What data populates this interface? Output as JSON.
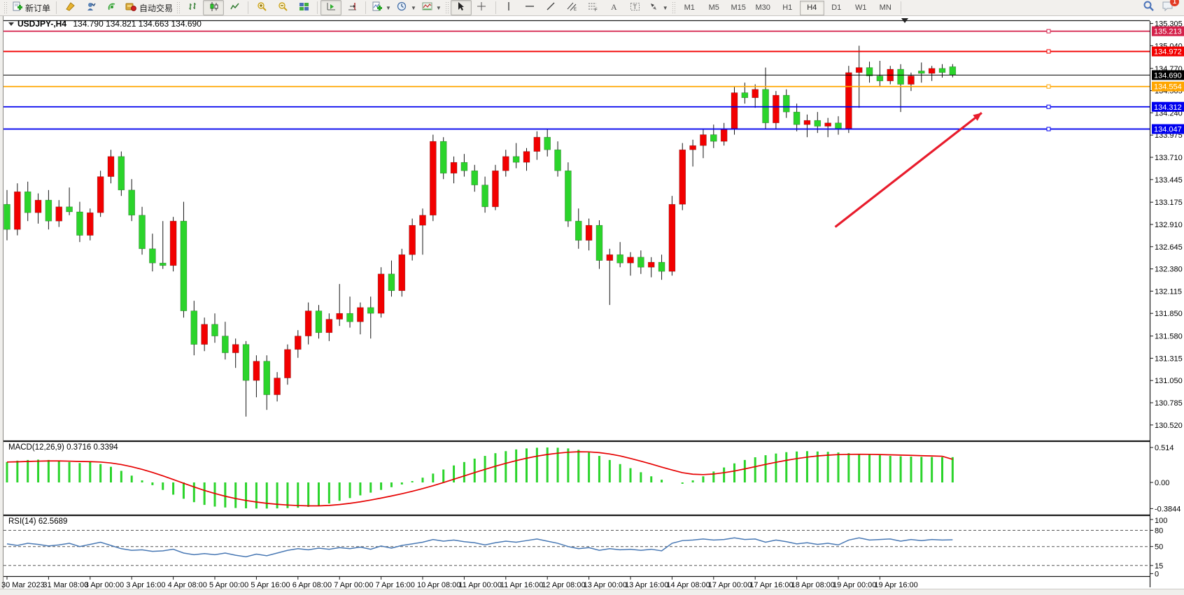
{
  "toolbar": {
    "new_order_label": "新订单",
    "autotrading_label": "自动交易",
    "timeframes": [
      "M1",
      "M5",
      "M15",
      "M30",
      "H1",
      "H4",
      "D1",
      "W1",
      "MN"
    ],
    "active_timeframe": "H4",
    "badge_count": "1"
  },
  "chart_header": {
    "title": "USDJPY-,H4",
    "ohlc": "134.790 134.821 134.663 134.690"
  },
  "colors": {
    "bull": "#f20000",
    "bear": "#2bd42b",
    "wick": "#141414",
    "hline_crimson": "#d4214a",
    "hline_red": "#f20000",
    "hline_orange": "#ffa600",
    "hline_blue": "#0000ee",
    "current_price": "#000000",
    "macd_hist": "#2bd42b",
    "macd_signal": "#e60000",
    "rsi_line": "#4878b4",
    "arrow": "#e81c2c",
    "axis_text": "#000000",
    "level_dash": "#555555"
  },
  "chart_data": {
    "type": "candlestick",
    "symbol": "USDJPY-",
    "timeframe": "H4",
    "title": "USDJPY-,H4 134.790 134.821 134.663 134.690",
    "current_bar": {
      "open": "134.790",
      "high": "134.821",
      "low": "134.663",
      "close": "134.690"
    },
    "price_ticks": [
      135.305,
      135.04,
      134.77,
      134.505,
      134.24,
      133.975,
      133.71,
      133.445,
      133.175,
      132.91,
      132.645,
      132.38,
      132.115,
      131.85,
      131.58,
      131.315,
      131.05,
      130.785,
      130.52
    ],
    "time_labels": [
      "30 Mar 2023",
      "31 Mar 08:00",
      "3 Apr 00:00",
      "3 Apr 16:00",
      "4 Apr 08:00",
      "5 Apr 00:00",
      "5 Apr 16:00",
      "6 Apr 08:00",
      "7 Apr 00:00",
      "7 Apr 16:00",
      "10 Apr 08:00",
      "11 Apr 00:00",
      "11 Apr 16:00",
      "12 Apr 08:00",
      "13 Apr 00:00",
      "13 Apr 16:00",
      "14 Apr 08:00",
      "17 Apr 00:00",
      "17 Apr 16:00",
      "18 Apr 08:00",
      "19 Apr 00:00",
      "19 Apr 16:00"
    ],
    "bars_per_label": 4,
    "hlines": [
      {
        "price": 135.213,
        "label": "135.213",
        "color": "#d4214a"
      },
      {
        "price": 134.972,
        "label": "134.972",
        "color": "#f20000"
      },
      {
        "price": 134.554,
        "label": "134.554",
        "color": "#ffa600"
      },
      {
        "price": 134.312,
        "label": "134.312",
        "color": "#0000ee"
      },
      {
        "price": 134.047,
        "label": "134.047",
        "color": "#0000ee"
      }
    ],
    "current_price_line": {
      "price": 134.69,
      "label": "134.690"
    },
    "arrow": {
      "from_bar": 79.7,
      "from_price": 132.88,
      "to_bar": 93.8,
      "to_price": 134.24
    },
    "candles": [
      [
        133.15,
        133.32,
        132.72,
        132.85
      ],
      [
        132.85,
        133.4,
        132.78,
        133.3
      ],
      [
        133.3,
        133.42,
        132.95,
        133.05
      ],
      [
        133.05,
        133.28,
        132.92,
        133.2
      ],
      [
        133.2,
        133.32,
        132.85,
        132.95
      ],
      [
        132.95,
        133.2,
        132.88,
        133.12
      ],
      [
        133.12,
        133.35,
        133.02,
        133.06
      ],
      [
        133.06,
        133.18,
        132.7,
        132.78
      ],
      [
        132.78,
        133.1,
        132.72,
        133.05
      ],
      [
        133.05,
        133.55,
        133.0,
        133.48
      ],
      [
        133.48,
        133.8,
        133.4,
        133.72
      ],
      [
        133.72,
        133.78,
        133.25,
        133.32
      ],
      [
        133.32,
        133.45,
        132.95,
        133.02
      ],
      [
        133.02,
        133.12,
        132.55,
        132.62
      ],
      [
        132.62,
        132.8,
        132.35,
        132.45
      ],
      [
        132.45,
        132.95,
        132.38,
        132.42
      ],
      [
        132.42,
        133.0,
        132.35,
        132.95
      ],
      [
        132.95,
        133.18,
        131.8,
        131.88
      ],
      [
        131.88,
        132.0,
        131.35,
        131.48
      ],
      [
        131.48,
        131.8,
        131.4,
        131.72
      ],
      [
        131.72,
        131.85,
        131.5,
        131.58
      ],
      [
        131.58,
        131.75,
        131.3,
        131.38
      ],
      [
        131.38,
        131.55,
        131.2,
        131.48
      ],
      [
        131.48,
        131.52,
        130.62,
        131.05
      ],
      [
        131.05,
        131.35,
        130.85,
        131.28
      ],
      [
        131.28,
        131.35,
        130.7,
        130.88
      ],
      [
        130.88,
        131.15,
        130.8,
        131.08
      ],
      [
        131.08,
        131.48,
        131.0,
        131.42
      ],
      [
        131.42,
        131.65,
        131.32,
        131.58
      ],
      [
        131.58,
        131.98,
        131.48,
        131.88
      ],
      [
        131.88,
        131.95,
        131.55,
        131.62
      ],
      [
        131.62,
        131.85,
        131.52,
        131.78
      ],
      [
        131.78,
        132.2,
        131.7,
        131.85
      ],
      [
        131.85,
        132.05,
        131.68,
        131.75
      ],
      [
        131.75,
        131.98,
        131.6,
        131.92
      ],
      [
        131.92,
        132.05,
        131.55,
        131.85
      ],
      [
        131.85,
        132.4,
        131.8,
        132.32
      ],
      [
        132.32,
        132.48,
        132.05,
        132.12
      ],
      [
        132.12,
        132.62,
        132.05,
        132.55
      ],
      [
        132.55,
        132.98,
        132.48,
        132.9
      ],
      [
        132.9,
        133.1,
        132.55,
        133.02
      ],
      [
        133.02,
        133.98,
        132.95,
        133.9
      ],
      [
        133.9,
        133.95,
        133.45,
        133.52
      ],
      [
        133.52,
        133.72,
        133.4,
        133.65
      ],
      [
        133.65,
        133.75,
        133.48,
        133.55
      ],
      [
        133.55,
        133.62,
        133.3,
        133.38
      ],
      [
        133.38,
        133.48,
        133.05,
        133.12
      ],
      [
        133.12,
        133.62,
        133.08,
        133.55
      ],
      [
        133.55,
        133.8,
        133.48,
        133.72
      ],
      [
        133.72,
        133.88,
        133.58,
        133.65
      ],
      [
        133.65,
        133.82,
        133.55,
        133.78
      ],
      [
        133.78,
        134.02,
        133.68,
        133.95
      ],
      [
        133.95,
        134.04,
        133.72,
        133.8
      ],
      [
        133.8,
        133.9,
        133.48,
        133.55
      ],
      [
        133.55,
        133.65,
        132.88,
        132.95
      ],
      [
        132.95,
        133.1,
        132.62,
        132.72
      ],
      [
        132.72,
        132.98,
        132.6,
        132.9
      ],
      [
        132.9,
        132.96,
        132.38,
        132.48
      ],
      [
        132.48,
        132.62,
        131.95,
        132.55
      ],
      [
        132.55,
        132.7,
        132.4,
        132.45
      ],
      [
        132.45,
        132.58,
        132.3,
        132.52
      ],
      [
        132.52,
        132.6,
        132.32,
        132.4
      ],
      [
        132.4,
        132.52,
        132.28,
        132.46
      ],
      [
        132.46,
        132.55,
        132.25,
        132.35
      ],
      [
        132.35,
        133.25,
        132.3,
        133.15
      ],
      [
        133.15,
        133.88,
        133.08,
        133.8
      ],
      [
        133.8,
        133.92,
        133.6,
        133.85
      ],
      [
        133.85,
        134.05,
        133.7,
        133.98
      ],
      [
        133.98,
        134.1,
        133.82,
        133.9
      ],
      [
        133.9,
        134.12,
        133.85,
        134.05
      ],
      [
        134.05,
        134.55,
        133.98,
        134.48
      ],
      [
        134.48,
        134.6,
        134.35,
        134.42
      ],
      [
        134.42,
        134.58,
        134.3,
        134.52
      ],
      [
        134.52,
        134.78,
        134.05,
        134.12
      ],
      [
        134.12,
        134.5,
        134.05,
        134.45
      ],
      [
        134.45,
        134.52,
        134.18,
        134.25
      ],
      [
        134.25,
        134.35,
        134.02,
        134.1
      ],
      [
        134.1,
        134.22,
        133.95,
        134.15
      ],
      [
        134.15,
        134.25,
        134.0,
        134.08
      ],
      [
        134.08,
        134.18,
        133.95,
        134.12
      ],
      [
        134.12,
        134.2,
        133.98,
        134.05
      ],
      [
        134.05,
        134.8,
        134.0,
        134.72
      ],
      [
        134.72,
        135.04,
        134.3,
        134.78
      ],
      [
        134.78,
        134.85,
        134.6,
        134.68
      ],
      [
        134.68,
        134.86,
        134.55,
        134.62
      ],
      [
        134.62,
        134.8,
        134.58,
        134.76
      ],
      [
        134.76,
        134.82,
        134.25,
        134.58
      ],
      [
        134.58,
        134.72,
        134.5,
        134.68
      ],
      [
        134.74,
        134.84,
        134.6,
        134.71
      ],
      [
        134.71,
        134.8,
        134.62,
        134.77
      ],
      [
        134.77,
        134.82,
        134.66,
        134.72
      ],
      [
        134.79,
        134.821,
        134.663,
        134.69
      ]
    ],
    "macd": {
      "name_label": "MACD(12,26,9) 0.3716 0.3394",
      "ticks": [
        {
          "v": 0.514,
          "label": "0.514"
        },
        {
          "v": 0,
          "label": "0.00"
        },
        {
          "v": -0.3844,
          "label": "-0.3844"
        }
      ],
      "hist": [
        0.3,
        0.32,
        0.33,
        0.335,
        0.33,
        0.315,
        0.3,
        0.285,
        0.3,
        0.27,
        0.23,
        0.17,
        0.1,
        0.03,
        -0.04,
        -0.11,
        -0.18,
        -0.24,
        -0.29,
        -0.33,
        -0.355,
        -0.368,
        -0.376,
        -0.381,
        -0.384,
        -0.3844,
        -0.382,
        -0.378,
        -0.372,
        -0.36,
        -0.34,
        -0.31,
        -0.27,
        -0.23,
        -0.19,
        -0.15,
        -0.11,
        -0.07,
        -0.03,
        0.02,
        0.07,
        0.13,
        0.19,
        0.25,
        0.3,
        0.35,
        0.39,
        0.43,
        0.46,
        0.485,
        0.5,
        0.51,
        0.514,
        0.51,
        0.5,
        0.48,
        0.44,
        0.39,
        0.33,
        0.27,
        0.21,
        0.15,
        0.09,
        0.04,
        0.0,
        -0.02,
        0.03,
        0.09,
        0.16,
        0.22,
        0.28,
        0.33,
        0.37,
        0.4,
        0.425,
        0.445,
        0.455,
        0.46,
        0.455,
        0.45,
        0.44,
        0.43,
        0.42,
        0.41,
        0.4,
        0.39,
        0.385,
        0.38,
        0.376,
        0.374,
        0.372,
        0.3716
      ],
      "signal": [
        0.3,
        0.303,
        0.308,
        0.313,
        0.316,
        0.316,
        0.313,
        0.308,
        0.306,
        0.3,
        0.286,
        0.263,
        0.231,
        0.192,
        0.147,
        0.097,
        0.043,
        -0.012,
        -0.066,
        -0.117,
        -0.163,
        -0.203,
        -0.237,
        -0.265,
        -0.288,
        -0.307,
        -0.321,
        -0.332,
        -0.34,
        -0.344,
        -0.344,
        -0.338,
        -0.325,
        -0.307,
        -0.285,
        -0.259,
        -0.23,
        -0.199,
        -0.166,
        -0.13,
        -0.091,
        -0.048,
        -0.002,
        0.047,
        0.096,
        0.145,
        0.192,
        0.238,
        0.281,
        0.321,
        0.356,
        0.386,
        0.411,
        0.43,
        0.444,
        0.451,
        0.449,
        0.438,
        0.418,
        0.39,
        0.353,
        0.313,
        0.27,
        0.226,
        0.183,
        0.143,
        0.121,
        0.115,
        0.124,
        0.143,
        0.168,
        0.199,
        0.232,
        0.265,
        0.296,
        0.325,
        0.35,
        0.372,
        0.389,
        0.401,
        0.409,
        0.413,
        0.414,
        0.413,
        0.41,
        0.406,
        0.402,
        0.398,
        0.393,
        0.389,
        0.385,
        0.3394
      ]
    },
    "rsi": {
      "name_label": "RSI(14) 62.5689",
      "ticks": [
        {
          "v": 100,
          "label": "100"
        },
        {
          "v": 80,
          "label": "80"
        },
        {
          "v": 50,
          "label": "50"
        },
        {
          "v": 15,
          "label": "15"
        },
        {
          "v": 0,
          "label": "0"
        }
      ],
      "dashed_levels": [
        80,
        50,
        15
      ],
      "values": [
        55,
        52,
        56,
        54,
        51,
        53,
        56,
        50,
        54,
        58,
        52,
        46,
        43,
        44,
        41,
        42,
        45,
        38,
        35,
        37,
        35,
        38,
        34,
        31,
        36,
        33,
        38,
        43,
        46,
        44,
        47,
        45,
        48,
        46,
        49,
        45,
        51,
        47,
        52,
        55,
        58,
        63,
        60,
        62,
        59,
        57,
        53,
        57,
        60,
        58,
        61,
        64,
        60,
        56,
        50,
        46,
        48,
        43,
        46,
        44,
        45,
        43,
        45,
        42,
        56,
        61,
        62,
        64,
        62,
        63,
        66,
        63,
        64,
        58,
        62,
        59,
        55,
        57,
        54,
        56,
        53,
        62,
        66,
        62,
        63,
        64,
        60,
        63,
        61,
        63,
        62,
        62.57
      ]
    }
  }
}
